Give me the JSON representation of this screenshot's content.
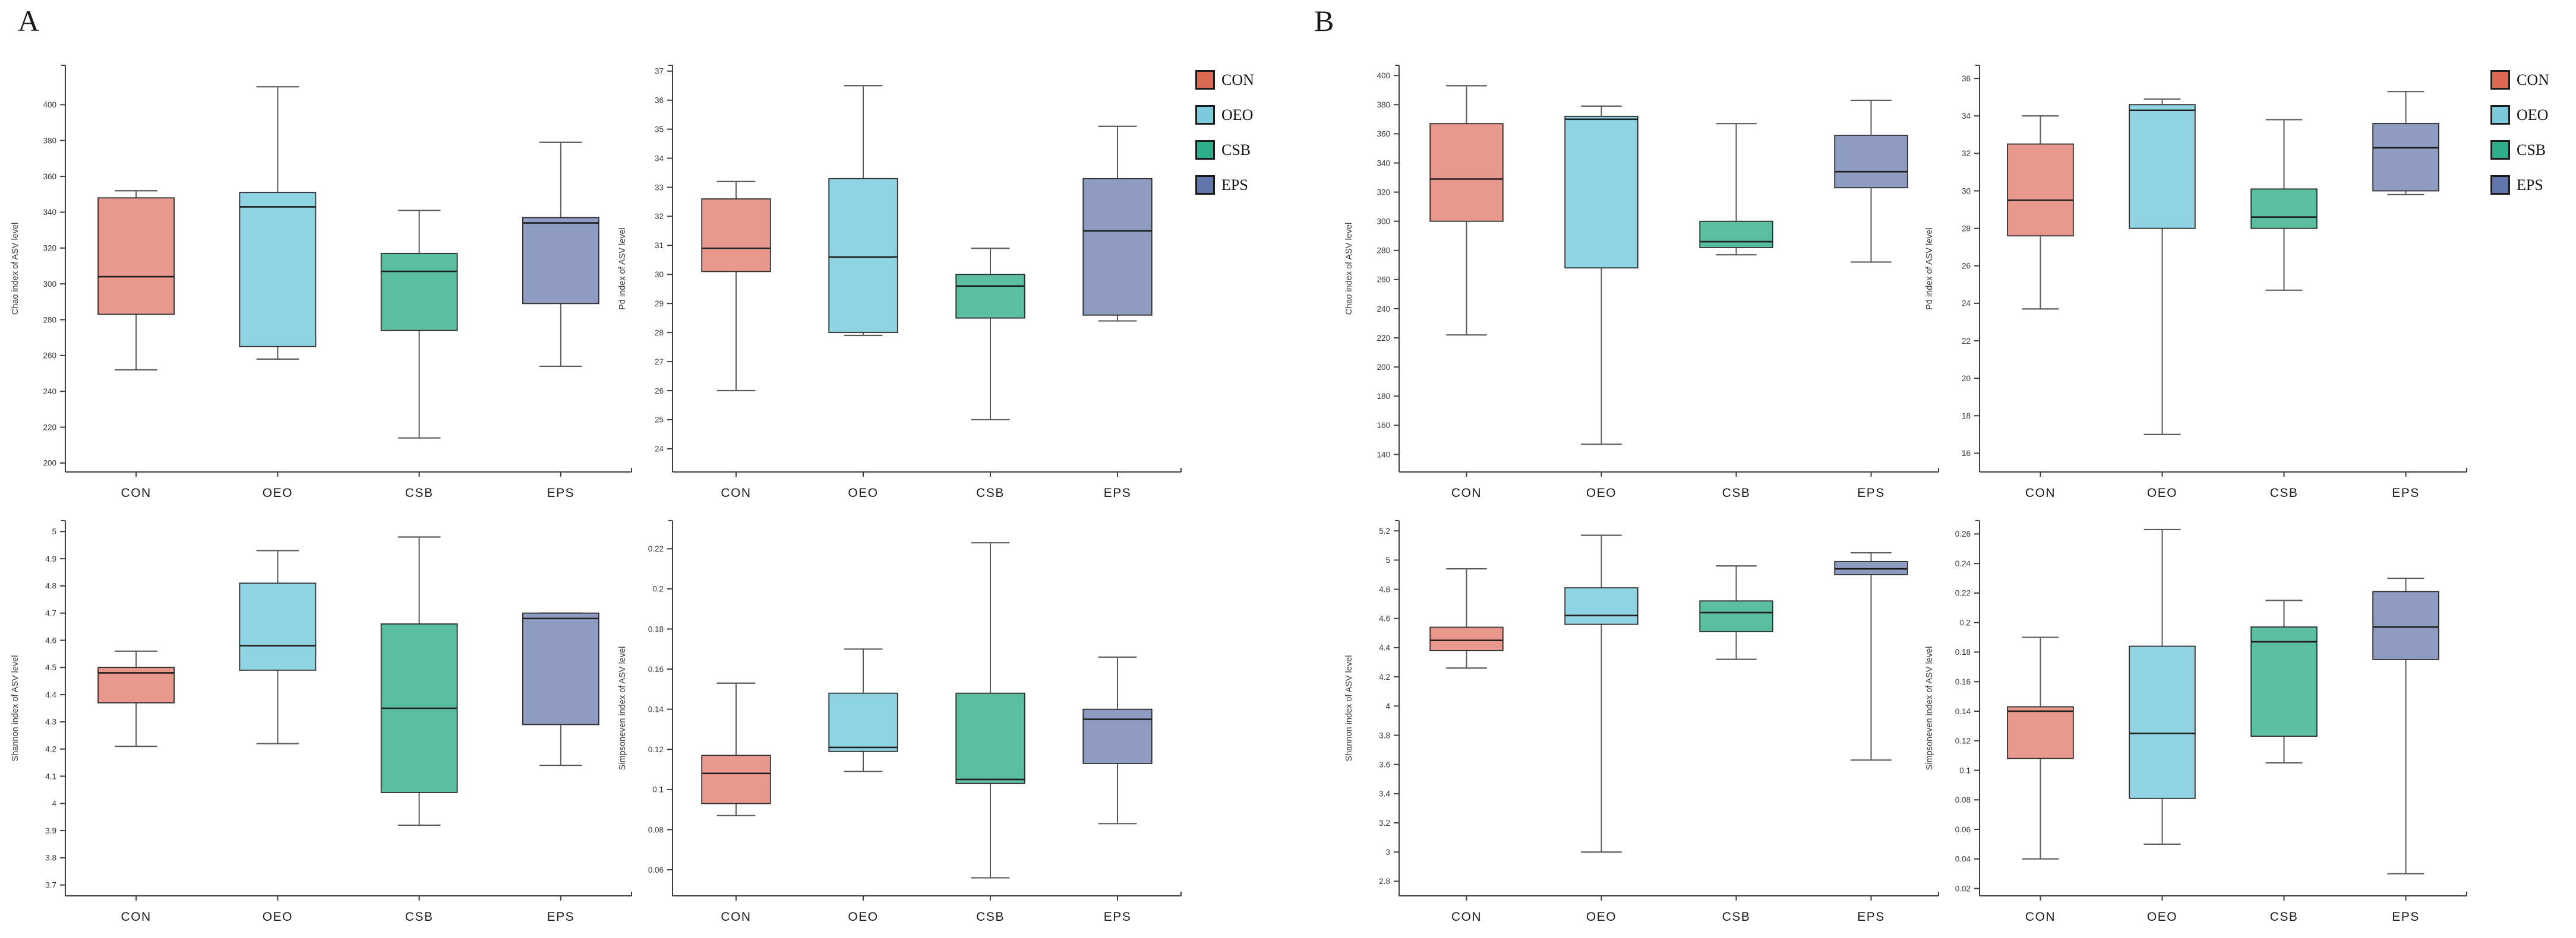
{
  "panel_a": {
    "label": "A"
  },
  "panel_b": {
    "label": "B"
  },
  "legend": {
    "items": [
      "CON",
      "OEO",
      "CSB",
      "EPS"
    ]
  },
  "colors": {
    "box": {
      "CON": "#E8988D",
      "OEO": "#90D3E2",
      "CSB": "#5BBEA0",
      "EPS": "#8D9CC0"
    },
    "legend": {
      "CON": "#DC6A53",
      "OEO": "#7CCBDD",
      "CSB": "#2FAE8B",
      "EPS": "#6076AB"
    },
    "box_stroke": "#2e2e2e",
    "median": "#1f1f1f",
    "whisker": "#5a5a5a",
    "axis": "#3f3f3f"
  },
  "chart_data": [
    {
      "type": "box",
      "panel": "A",
      "ylabel": "Chao index of ASV level",
      "categories": [
        "CON",
        "OEO",
        "CSB",
        "EPS"
      ],
      "ylim": [
        195,
        422
      ],
      "yticks": [
        200,
        220,
        240,
        260,
        280,
        300,
        320,
        340,
        360,
        380,
        400
      ],
      "series": [
        {
          "name": "CON",
          "whislo": 252,
          "q1": 283,
          "med": 304,
          "q3": 348,
          "whishi": 352
        },
        {
          "name": "OEO",
          "whislo": 258,
          "q1": 265,
          "med": 343,
          "q3": 351,
          "whishi": 410
        },
        {
          "name": "CSB",
          "whislo": 214,
          "q1": 274,
          "med": 307,
          "q3": 317,
          "whishi": 341
        },
        {
          "name": "EPS",
          "whislo": 254,
          "q1": 289,
          "med": 334,
          "q3": 337,
          "whishi": 379
        }
      ]
    },
    {
      "type": "box",
      "panel": "A",
      "ylabel": "Pd index of ASV level",
      "categories": [
        "CON",
        "OEO",
        "CSB",
        "EPS"
      ],
      "ylim": [
        23.2,
        37.2
      ],
      "yticks": [
        24,
        25,
        26,
        27,
        28,
        29,
        30,
        31,
        32,
        33,
        34,
        35,
        36,
        37
      ],
      "series": [
        {
          "name": "CON",
          "whislo": 26.0,
          "q1": 30.1,
          "med": 30.9,
          "q3": 32.6,
          "whishi": 33.2
        },
        {
          "name": "OEO",
          "whislo": 27.9,
          "q1": 28.0,
          "med": 30.6,
          "q3": 33.3,
          "whishi": 36.5
        },
        {
          "name": "CSB",
          "whislo": 25.0,
          "q1": 28.5,
          "med": 29.6,
          "q3": 30.0,
          "whishi": 30.9
        },
        {
          "name": "EPS",
          "whislo": 28.4,
          "q1": 28.6,
          "med": 31.5,
          "q3": 33.3,
          "whishi": 35.1
        }
      ]
    },
    {
      "type": "box",
      "panel": "A",
      "ylabel": "Shannon index of ASV level",
      "categories": [
        "CON",
        "OEO",
        "CSB",
        "EPS"
      ],
      "ylim": [
        3.66,
        5.04
      ],
      "yticks": [
        3.7,
        3.8,
        3.9,
        4,
        4.1,
        4.2,
        4.3,
        4.4,
        4.5,
        4.6,
        4.7,
        4.8,
        4.9,
        5
      ],
      "series": [
        {
          "name": "CON",
          "whislo": 4.21,
          "q1": 4.37,
          "med": 4.48,
          "q3": 4.5,
          "whishi": 4.56
        },
        {
          "name": "OEO",
          "whislo": 4.22,
          "q1": 4.49,
          "med": 4.58,
          "q3": 4.81,
          "whishi": 4.93
        },
        {
          "name": "CSB",
          "whislo": 3.92,
          "q1": 4.04,
          "med": 4.35,
          "q3": 4.66,
          "whishi": 4.98
        },
        {
          "name": "EPS",
          "whislo": 4.14,
          "q1": 4.29,
          "med": 4.68,
          "q3": 4.7,
          "whishi": 4.7
        }
      ]
    },
    {
      "type": "box",
      "panel": "A",
      "ylabel": "Simpsoneven index of ASV level",
      "categories": [
        "CON",
        "OEO",
        "CSB",
        "EPS"
      ],
      "ylim": [
        0.047,
        0.234
      ],
      "yticks": [
        0.06,
        0.08,
        0.1,
        0.12,
        0.14,
        0.16,
        0.18,
        0.2,
        0.22
      ],
      "series": [
        {
          "name": "CON",
          "whislo": 0.087,
          "q1": 0.093,
          "med": 0.108,
          "q3": 0.117,
          "whishi": 0.153
        },
        {
          "name": "OEO",
          "whislo": 0.109,
          "q1": 0.119,
          "med": 0.121,
          "q3": 0.148,
          "whishi": 0.17
        },
        {
          "name": "CSB",
          "whislo": 0.056,
          "q1": 0.103,
          "med": 0.105,
          "q3": 0.148,
          "whishi": 0.223
        },
        {
          "name": "EPS",
          "whislo": 0.083,
          "q1": 0.113,
          "med": 0.135,
          "q3": 0.14,
          "whishi": 0.166
        }
      ]
    },
    {
      "type": "box",
      "panel": "B",
      "ylabel": "Chao index of ASV level",
      "categories": [
        "CON",
        "OEO",
        "CSB",
        "EPS"
      ],
      "ylim": [
        128,
        407
      ],
      "yticks": [
        140,
        160,
        180,
        200,
        220,
        240,
        260,
        280,
        300,
        320,
        340,
        360,
        380,
        400
      ],
      "series": [
        {
          "name": "CON",
          "whislo": 222,
          "q1": 300,
          "med": 329,
          "q3": 367,
          "whishi": 393
        },
        {
          "name": "OEO",
          "whislo": 147,
          "q1": 268,
          "med": 370,
          "q3": 372,
          "whishi": 379
        },
        {
          "name": "CSB",
          "whislo": 277,
          "q1": 282,
          "med": 286,
          "q3": 300,
          "whishi": 367
        },
        {
          "name": "EPS",
          "whislo": 272,
          "q1": 323,
          "med": 334,
          "q3": 359,
          "whishi": 383
        }
      ]
    },
    {
      "type": "box",
      "panel": "B",
      "ylabel": "Pd index of ASV level",
      "categories": [
        "CON",
        "OEO",
        "CSB",
        "EPS"
      ],
      "ylim": [
        15.0,
        36.7
      ],
      "yticks": [
        16,
        18,
        20,
        22,
        24,
        26,
        28,
        30,
        32,
        34,
        36
      ],
      "series": [
        {
          "name": "CON",
          "whislo": 23.7,
          "q1": 27.6,
          "med": 29.5,
          "q3": 32.5,
          "whishi": 34.0
        },
        {
          "name": "OEO",
          "whislo": 17.0,
          "q1": 28.0,
          "med": 34.3,
          "q3": 34.6,
          "whishi": 34.9
        },
        {
          "name": "CSB",
          "whislo": 24.7,
          "q1": 28.0,
          "med": 28.6,
          "q3": 30.1,
          "whishi": 33.8
        },
        {
          "name": "EPS",
          "whislo": 29.8,
          "q1": 30.0,
          "med": 32.3,
          "q3": 33.6,
          "whishi": 35.3
        }
      ]
    },
    {
      "type": "box",
      "panel": "B",
      "ylabel": "Shannon index of ASV level",
      "categories": [
        "CON",
        "OEO",
        "CSB",
        "EPS"
      ],
      "ylim": [
        2.7,
        5.27
      ],
      "yticks": [
        2.8,
        3,
        3.2,
        3.4,
        3.6,
        3.8,
        4,
        4.2,
        4.4,
        4.6,
        4.8,
        5,
        5.2
      ],
      "series": [
        {
          "name": "CON",
          "whislo": 4.26,
          "q1": 4.38,
          "med": 4.45,
          "q3": 4.54,
          "whishi": 4.94
        },
        {
          "name": "OEO",
          "whislo": 3.0,
          "q1": 4.56,
          "med": 4.62,
          "q3": 4.81,
          "whishi": 5.17
        },
        {
          "name": "CSB",
          "whislo": 4.32,
          "q1": 4.51,
          "med": 4.64,
          "q3": 4.72,
          "whishi": 4.96
        },
        {
          "name": "EPS",
          "whislo": 3.63,
          "q1": 4.9,
          "med": 4.94,
          "q3": 4.99,
          "whishi": 5.05
        }
      ]
    },
    {
      "type": "box",
      "panel": "B",
      "ylabel": "Simpsoneven index of ASV level",
      "categories": [
        "CON",
        "OEO",
        "CSB",
        "EPS"
      ],
      "ylim": [
        0.015,
        0.269
      ],
      "yticks": [
        0.02,
        0.04,
        0.06,
        0.08,
        0.1,
        0.12,
        0.14,
        0.16,
        0.18,
        0.2,
        0.22,
        0.24,
        0.26
      ],
      "series": [
        {
          "name": "CON",
          "whislo": 0.04,
          "q1": 0.108,
          "med": 0.14,
          "q3": 0.143,
          "whishi": 0.19
        },
        {
          "name": "OEO",
          "whislo": 0.05,
          "q1": 0.081,
          "med": 0.125,
          "q3": 0.184,
          "whishi": 0.263
        },
        {
          "name": "CSB",
          "whislo": 0.105,
          "q1": 0.123,
          "med": 0.187,
          "q3": 0.197,
          "whishi": 0.215
        },
        {
          "name": "EPS",
          "whislo": 0.03,
          "q1": 0.175,
          "med": 0.197,
          "q3": 0.221,
          "whishi": 0.23
        }
      ]
    }
  ]
}
